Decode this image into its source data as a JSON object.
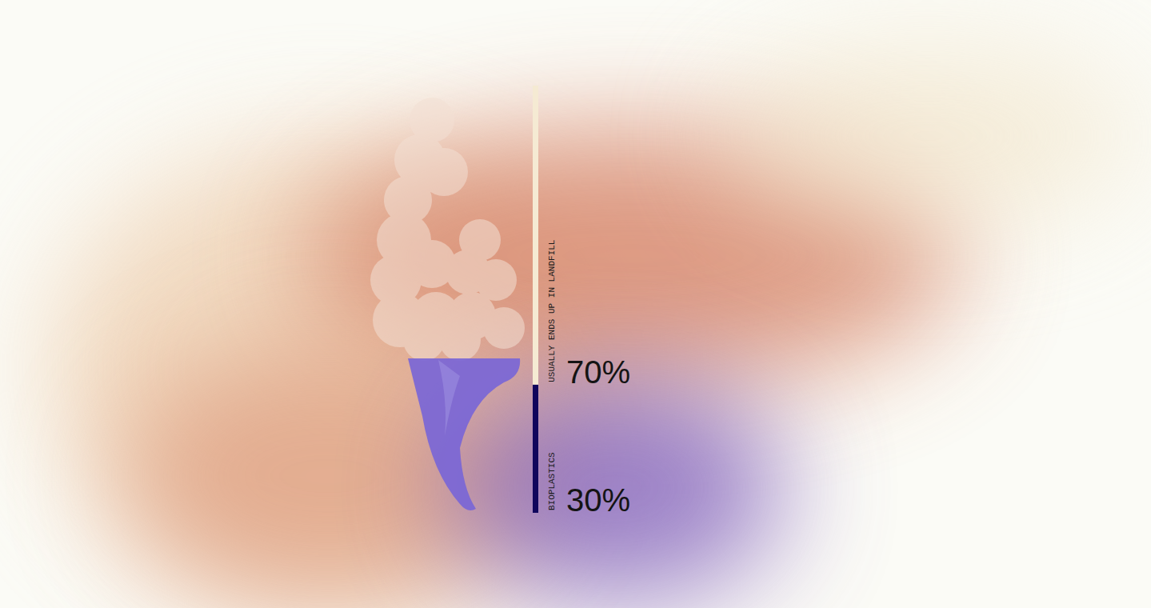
{
  "chart_data": {
    "type": "bar",
    "categories": [
      null
    ],
    "series": [
      {
        "name": "BIOPLASTICS",
        "color": "#10065c",
        "values": [
          30
        ],
        "value_labels": [
          "30%"
        ]
      },
      {
        "name": "USUALLY ENDS UP IN LANDFILL",
        "color": "#f5ead3",
        "values": [
          70
        ],
        "value_labels": [
          "70%"
        ]
      }
    ],
    "ylim": [
      0,
      100
    ],
    "stacked": true,
    "data_labels": true,
    "tick_labels": false,
    "grid": false
  }
}
